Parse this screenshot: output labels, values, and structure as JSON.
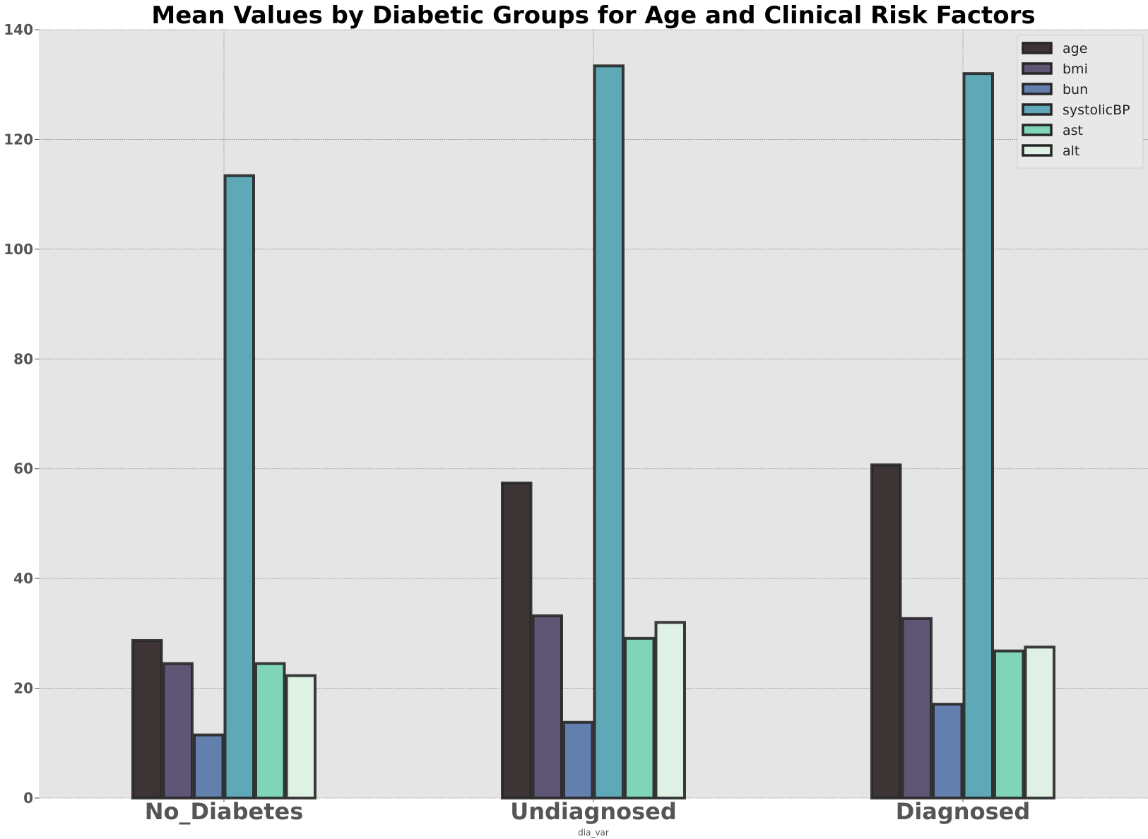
{
  "chart_data": {
    "type": "bar",
    "title": "Mean Values by Diabetic Groups for Age and Clinical Risk Factors",
    "xlabel": "dia_var",
    "ylabel": "",
    "ylim": [
      0,
      140
    ],
    "yticks": [
      0,
      20,
      40,
      60,
      80,
      100,
      120,
      140
    ],
    "grid": true,
    "legend_position": "top-right",
    "categories": [
      "No_Diabetes",
      "Undiagnosed",
      "Diagnosed"
    ],
    "series": [
      {
        "name": "age",
        "color": "#3d3535",
        "values": [
          28.7,
          57.4,
          60.7
        ]
      },
      {
        "name": "bmi",
        "color": "#5f5575",
        "values": [
          24.5,
          33.2,
          32.7
        ]
      },
      {
        "name": "bun",
        "color": "#637fae",
        "values": [
          11.5,
          13.8,
          17.1
        ]
      },
      {
        "name": "systolicBP",
        "color": "#5fa8b7",
        "values": [
          113.4,
          133.4,
          132.0
        ]
      },
      {
        "name": "ast",
        "color": "#80d4b9",
        "values": [
          24.5,
          29.1,
          26.8
        ]
      },
      {
        "name": "alt",
        "color": "#dff0e4",
        "values": [
          22.3,
          32.0,
          27.5
        ]
      }
    ]
  }
}
